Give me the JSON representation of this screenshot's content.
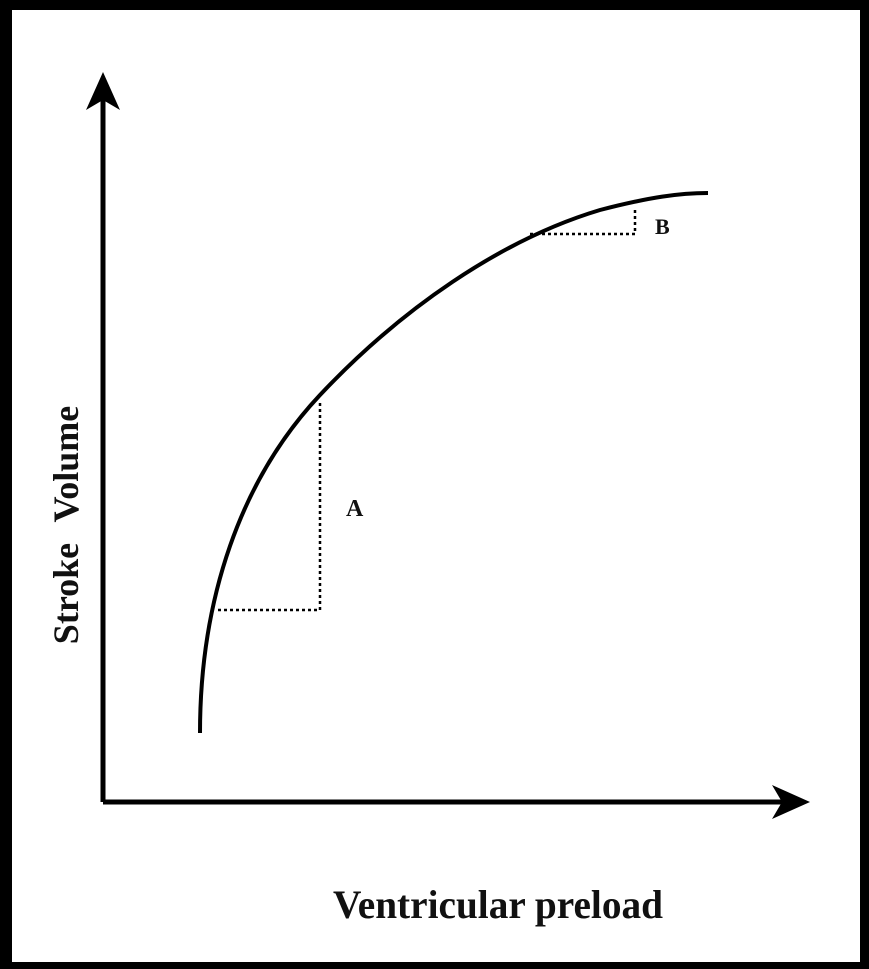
{
  "axes": {
    "y_label": "Stroke Volume",
    "x_label": "Ventricular preload"
  },
  "annotations": [
    "A",
    "B"
  ]
}
